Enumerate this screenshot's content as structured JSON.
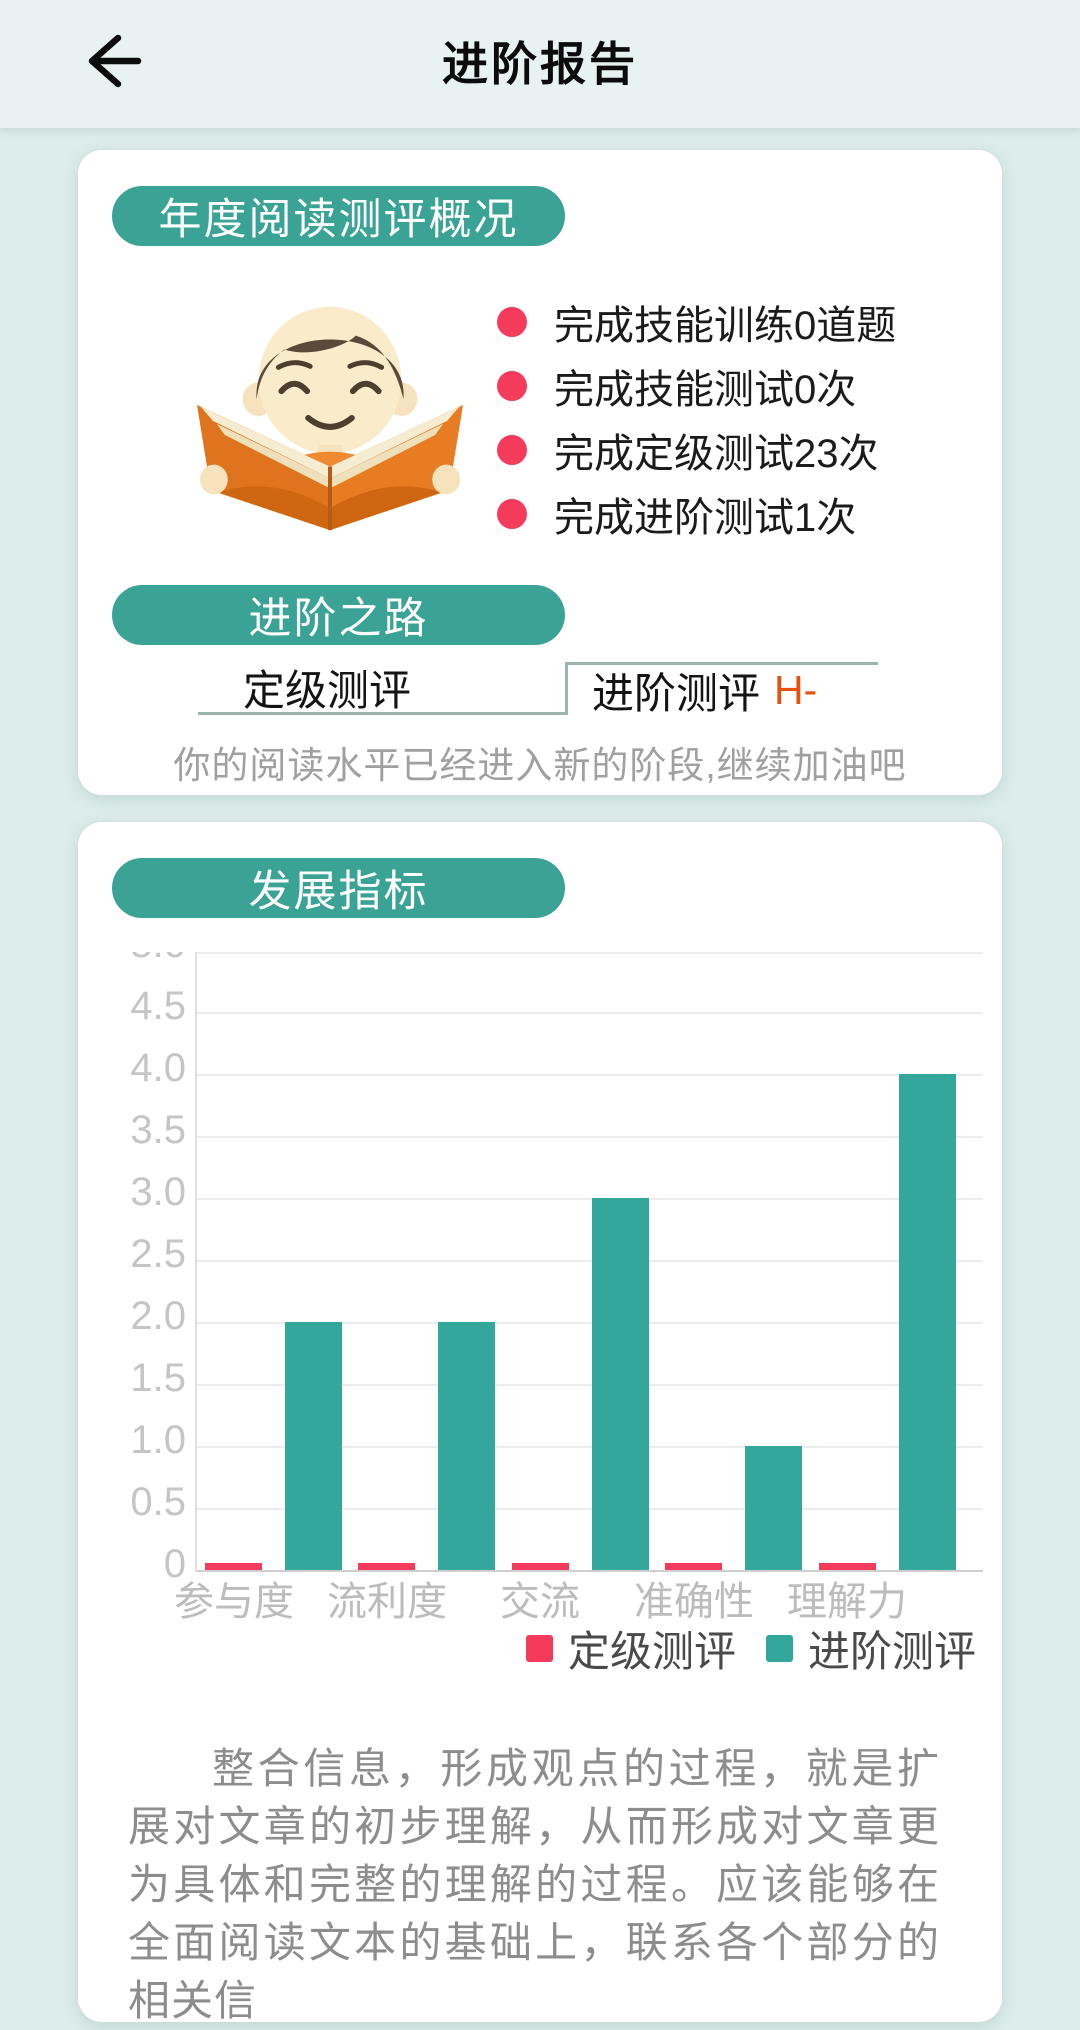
{
  "header": {
    "title": "进阶报告"
  },
  "overview_card": {
    "section_title": "年度阅读测评概况",
    "stats": [
      {
        "label": "完成技能训练0道题"
      },
      {
        "label": "完成技能测试0次"
      },
      {
        "label": "完成定级测试23次"
      },
      {
        "label": "完成进阶测试1次"
      }
    ],
    "path_title": "进阶之路",
    "tabs": [
      {
        "label": "定级测评"
      },
      {
        "label": "进阶测评",
        "badge": "H-"
      }
    ],
    "hint": "你的阅读水平已经进入新的阶段,继续加油吧"
  },
  "indicators_card": {
    "section_title": "发展指标",
    "description": "整合信息，形成观点的过程，就是扩展对文章的初步理解，从而形成对文章更为具体和完整的理解的过程。应该能够在全面阅读文本的基础上，联系各个部分的相关信"
  },
  "chart_data": {
    "type": "bar",
    "categories": [
      "参与度",
      "流利度",
      "交流",
      "准确性",
      "理解力"
    ],
    "series": [
      {
        "name": "定级测评",
        "color": "#f43b5c",
        "values": [
          0,
          0,
          0,
          0,
          0
        ]
      },
      {
        "name": "进阶测评",
        "color": "#33a79c",
        "values": [
          2,
          2,
          3,
          1,
          4
        ]
      }
    ],
    "ylim": [
      0,
      5
    ],
    "ytick_step": 0.5,
    "grid": true,
    "legend_position": "bottom"
  },
  "colors": {
    "accent_teal": "#3aa396",
    "accent_red": "#f43b5c",
    "grade_orange": "#e5510f",
    "header_bg": "#e8f3f1",
    "page_bg": "#ddedea"
  }
}
